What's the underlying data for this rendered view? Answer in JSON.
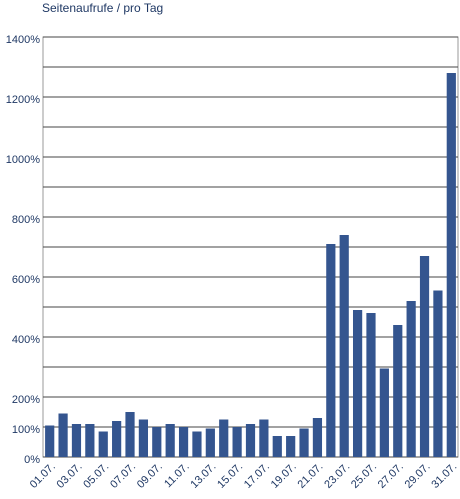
{
  "chart_data": {
    "type": "bar",
    "title": "Seitenaufrufe / pro Tag",
    "categories": [
      "01.07.",
      null,
      "03.07.",
      null,
      "05.07.",
      null,
      "07.07.",
      null,
      "09.07.",
      null,
      "11.07.",
      null,
      "13.07.",
      null,
      "15.07.",
      null,
      "17.07.",
      null,
      "19.07.",
      null,
      "21.07.",
      null,
      "23.07.",
      null,
      "25.07.",
      null,
      "27.07.",
      null,
      "29.07.",
      null,
      "31.07."
    ],
    "values": [
      105,
      145,
      110,
      110,
      85,
      120,
      150,
      125,
      100,
      110,
      100,
      85,
      95,
      125,
      100,
      110,
      125,
      70,
      70,
      95,
      130,
      710,
      740,
      490,
      480,
      295,
      440,
      520,
      670,
      555,
      1280
    ],
    "color": "#34558f",
    "ylim": [
      0,
      1400
    ],
    "yticks": [
      {
        "value": 0,
        "label": "0%"
      },
      {
        "value": 100,
        "label": "100%"
      },
      {
        "value": 200,
        "label": "200%"
      },
      {
        "value": 400,
        "label": "400%"
      },
      {
        "value": 600,
        "label": "600%"
      },
      {
        "value": 800,
        "label": "800%"
      },
      {
        "value": 1000,
        "label": "1000%"
      },
      {
        "value": 1200,
        "label": "1200%"
      },
      {
        "value": 1400,
        "label": "1400%"
      }
    ],
    "ygrid": [
      0,
      100,
      200,
      300,
      400,
      500,
      600,
      700,
      800,
      900,
      1000,
      1100,
      1200,
      1300,
      1400
    ],
    "grid": true
  }
}
